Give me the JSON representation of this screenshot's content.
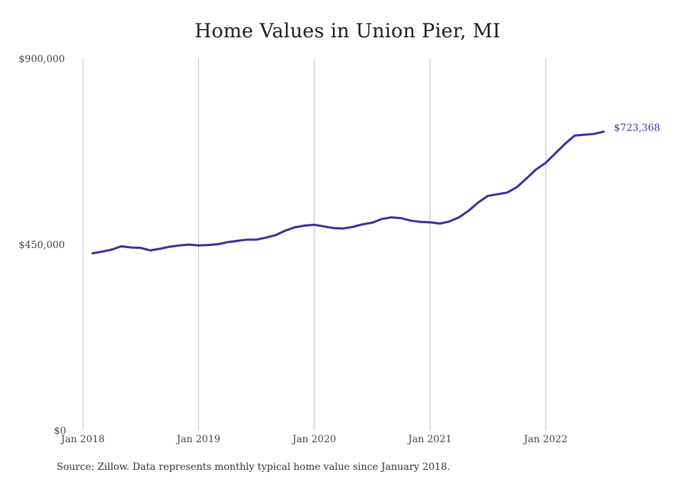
{
  "chart_data": {
    "type": "line",
    "title": "Home Values in Union Pier, MI",
    "xlabel": "",
    "ylabel": "",
    "ylim": [
      0,
      900000
    ],
    "y_ticks": [
      0,
      450000,
      900000
    ],
    "y_tick_labels": [
      "$0",
      "$450,000",
      "$900,000"
    ],
    "x_ticks": [
      "2018-01",
      "2019-01",
      "2020-01",
      "2021-01",
      "2022-01"
    ],
    "x_tick_labels": [
      "Jan 2018",
      "Jan 2019",
      "Jan 2020",
      "Jan 2021",
      "Jan 2022"
    ],
    "grid": "vertical",
    "series_color": "#3a31a2",
    "end_label": "$723,368",
    "series": [
      {
        "x": [
          "2018-02",
          "2018-03",
          "2018-04",
          "2018-05",
          "2018-06",
          "2018-07",
          "2018-08",
          "2018-09",
          "2018-10",
          "2018-11",
          "2018-12",
          "2019-01",
          "2019-02",
          "2019-03",
          "2019-04",
          "2019-05",
          "2019-06",
          "2019-07",
          "2019-08",
          "2019-09",
          "2019-10",
          "2019-11",
          "2019-12",
          "2020-01",
          "2020-02",
          "2020-03",
          "2020-04",
          "2020-05",
          "2020-06",
          "2020-07",
          "2020-08",
          "2020-09",
          "2020-10",
          "2020-11",
          "2020-12",
          "2021-01",
          "2021-02",
          "2021-03",
          "2021-04",
          "2021-05",
          "2021-06",
          "2021-07",
          "2021-08",
          "2021-09",
          "2021-10",
          "2021-11",
          "2021-12",
          "2022-01",
          "2022-02",
          "2022-03",
          "2022-04",
          "2022-05",
          "2022-06",
          "2022-07"
        ],
        "values": [
          429000,
          433000,
          438000,
          446000,
          443000,
          442000,
          436000,
          440000,
          445000,
          448000,
          450000,
          448000,
          449000,
          451000,
          456000,
          459000,
          462000,
          462000,
          467000,
          473000,
          484000,
          492000,
          496000,
          498000,
          494000,
          490000,
          489000,
          493000,
          499000,
          503000,
          512000,
          516000,
          514000,
          508000,
          505000,
          504000,
          501000,
          506000,
          516000,
          532000,
          552000,
          568000,
          572000,
          576000,
          589000,
          610000,
          632000,
          648000,
          671000,
          694000,
          714000,
          716000,
          718000,
          723368
        ]
      }
    ]
  },
  "source": "Source: Zillow. Data represents monthly typical home value since January 2018."
}
